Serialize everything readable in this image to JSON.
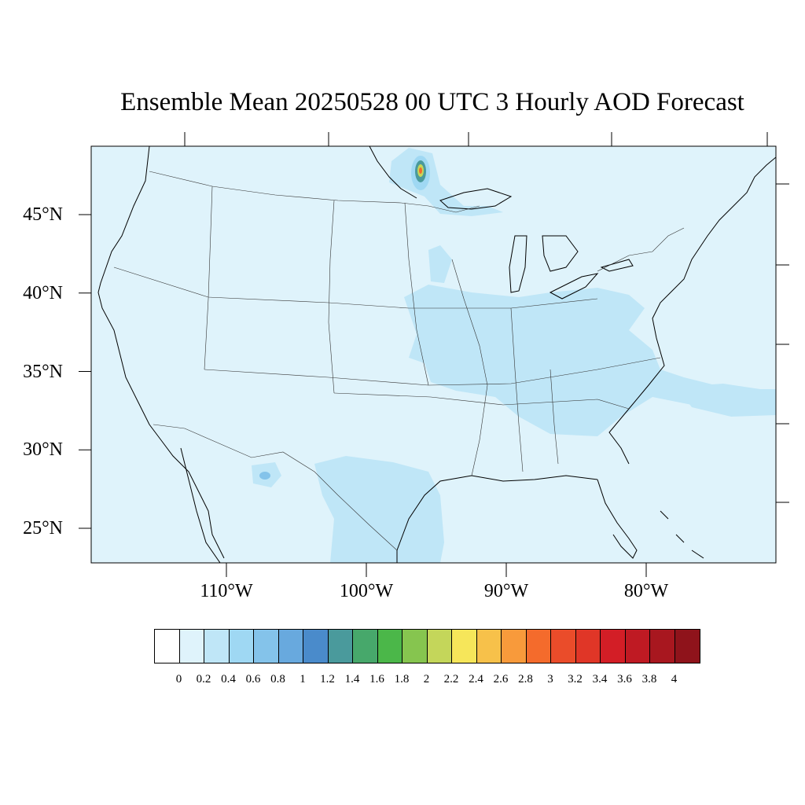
{
  "title": "Ensemble Mean 20250528 00 UTC 3 Hourly AOD Forecast",
  "map": {
    "lat_labels": [
      "45°N",
      "40°N",
      "35°N",
      "30°N",
      "25°N"
    ],
    "lat_values": [
      45,
      40,
      35,
      30,
      25
    ],
    "lon_labels": [
      "110°W",
      "100°W",
      "90°W",
      "80°W"
    ],
    "lon_values": [
      -110,
      -100,
      -90,
      -80
    ],
    "ocean_color": "#dff3fb",
    "coastline_color": "#000000"
  },
  "colorbar": {
    "levels": [
      "0",
      "0.2",
      "0.4",
      "0.6",
      "0.8",
      "1",
      "1.2",
      "1.4",
      "1.6",
      "1.8",
      "2",
      "2.2",
      "2.4",
      "2.6",
      "2.8",
      "3",
      "3.2",
      "3.4",
      "3.6",
      "3.8",
      "4"
    ],
    "colors": [
      "#ffffff",
      "#dff3fb",
      "#bfe6f7",
      "#9fd8f3",
      "#84c3ea",
      "#68a9de",
      "#4a8bcb",
      "#4a9a9c",
      "#47a86b",
      "#4bb749",
      "#86c54f",
      "#c4d65a",
      "#f6e65a",
      "#f7c14a",
      "#f89a3b",
      "#f46b2c",
      "#ea4c2a",
      "#e03627",
      "#d31e26",
      "#bf1a23",
      "#a8171f",
      "#8f131b"
    ]
  }
}
